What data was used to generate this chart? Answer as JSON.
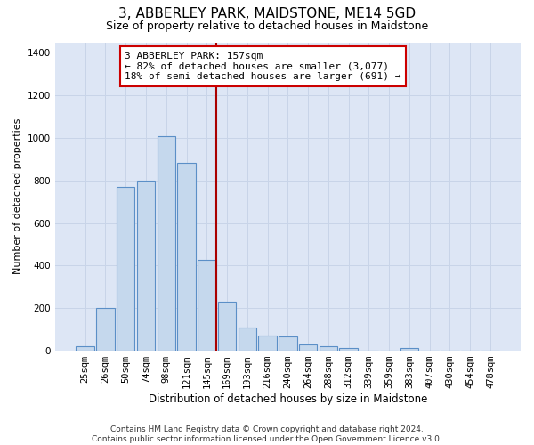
{
  "title": "3, ABBERLEY PARK, MAIDSTONE, ME14 5GD",
  "subtitle": "Size of property relative to detached houses in Maidstone",
  "xlabel": "Distribution of detached houses by size in Maidstone",
  "ylabel": "Number of detached properties",
  "categories": [
    "25sqm",
    "26sqm",
    "50sqm",
    "74sqm",
    "98sqm",
    "121sqm",
    "145sqm",
    "169sqm",
    "193sqm",
    "216sqm",
    "240sqm",
    "264sqm",
    "288sqm",
    "312sqm",
    "339sqm",
    "359sqm",
    "383sqm",
    "407sqm",
    "430sqm",
    "454sqm",
    "478sqm"
  ],
  "bar_heights": [
    20,
    200,
    770,
    800,
    1010,
    885,
    425,
    230,
    110,
    70,
    68,
    28,
    20,
    12,
    0,
    0,
    12,
    0,
    0,
    0,
    0
  ],
  "bar_color": "#c5d8ed",
  "bar_edge_color": "#5b8fc7",
  "property_line_color": "#aa0000",
  "annotation_text": "3 ABBERLEY PARK: 157sqm\n← 82% of detached houses are smaller (3,077)\n18% of semi-detached houses are larger (691) →",
  "annotation_box_color": "#ffffff",
  "annotation_box_edge_color": "#cc0000",
  "ylim": [
    0,
    1450
  ],
  "yticks": [
    0,
    200,
    400,
    600,
    800,
    1000,
    1200,
    1400
  ],
  "grid_color": "#c8d4e8",
  "background_color": "#dde6f5",
  "footnote": "Contains HM Land Registry data © Crown copyright and database right 2024.\nContains public sector information licensed under the Open Government Licence v3.0.",
  "title_fontsize": 11,
  "subtitle_fontsize": 9,
  "xlabel_fontsize": 8.5,
  "ylabel_fontsize": 8,
  "tick_fontsize": 7.5,
  "annotation_fontsize": 8,
  "footnote_fontsize": 6.5
}
